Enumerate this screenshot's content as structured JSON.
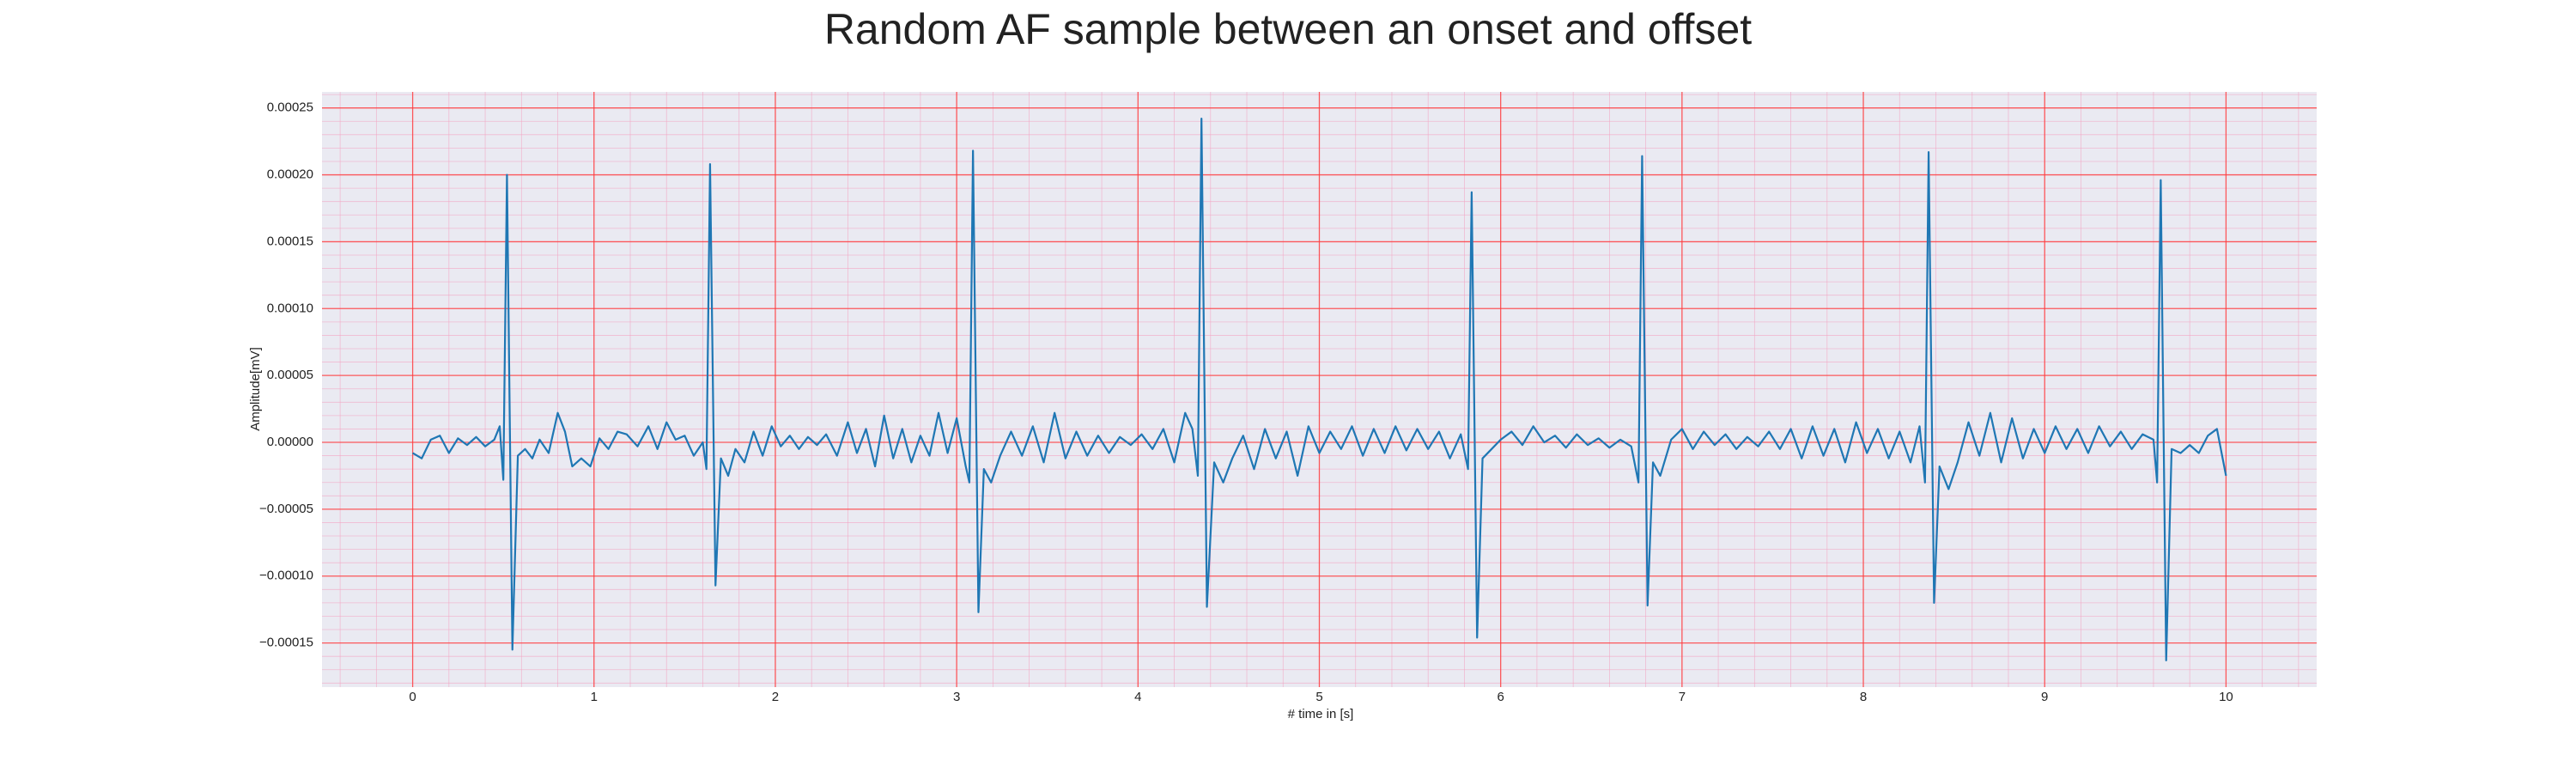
{
  "chart_data": {
    "type": "line",
    "title": "Random AF sample between an onset and offset",
    "x_label": "# time in [s]",
    "y_label": "Amplitude[mV]",
    "color": "#1f77b4",
    "grid": true,
    "minor_grid": true,
    "xlim": [
      -0.5,
      10.5
    ],
    "xticks": [
      0,
      1,
      2,
      3,
      4,
      5,
      6,
      7,
      8,
      9,
      10
    ],
    "ylim": [
      -0.000183,
      0.000262
    ],
    "yticks": [
      {
        "value": -0.00015,
        "label": "−0.00015"
      },
      {
        "value": -0.0001,
        "label": "−0.00010"
      },
      {
        "value": -5e-05,
        "label": "−0.00005"
      },
      {
        "value": 0,
        "label": "0.00000"
      },
      {
        "value": 5e-05,
        "label": "0.00005"
      },
      {
        "value": 0.0001,
        "label": "0.00010"
      },
      {
        "value": 0.00015,
        "label": "0.00015"
      },
      {
        "value": 0.0002,
        "label": "0.00020"
      },
      {
        "value": 0.00025,
        "label": "0.00025"
      }
    ],
    "x": [
      0.0,
      0.05,
      0.1,
      0.15,
      0.2,
      0.25,
      0.3,
      0.35,
      0.4,
      0.45,
      0.48,
      0.5,
      0.52,
      0.55,
      0.58,
      0.62,
      0.66,
      0.7,
      0.75,
      0.8,
      0.84,
      0.88,
      0.93,
      0.98,
      1.03,
      1.08,
      1.13,
      1.18,
      1.24,
      1.3,
      1.35,
      1.4,
      1.45,
      1.5,
      1.55,
      1.6,
      1.62,
      1.64,
      1.67,
      1.7,
      1.74,
      1.78,
      1.83,
      1.88,
      1.93,
      1.98,
      2.03,
      2.08,
      2.13,
      2.18,
      2.23,
      2.28,
      2.34,
      2.4,
      2.45,
      2.5,
      2.55,
      2.6,
      2.65,
      2.7,
      2.75,
      2.8,
      2.85,
      2.9,
      2.95,
      3.0,
      3.05,
      3.07,
      3.09,
      3.12,
      3.15,
      3.19,
      3.24,
      3.3,
      3.36,
      3.42,
      3.48,
      3.54,
      3.6,
      3.66,
      3.72,
      3.78,
      3.84,
      3.9,
      3.96,
      4.02,
      4.08,
      4.14,
      4.2,
      4.26,
      4.3,
      4.33,
      4.35,
      4.38,
      4.42,
      4.47,
      4.52,
      4.58,
      4.64,
      4.7,
      4.76,
      4.82,
      4.88,
      4.94,
      5.0,
      5.06,
      5.12,
      5.18,
      5.24,
      5.3,
      5.36,
      5.42,
      5.48,
      5.54,
      5.6,
      5.66,
      5.72,
      5.78,
      5.82,
      5.84,
      5.87,
      5.9,
      5.95,
      6.0,
      6.06,
      6.12,
      6.18,
      6.24,
      6.3,
      6.36,
      6.42,
      6.48,
      6.54,
      6.6,
      6.66,
      6.72,
      6.76,
      6.78,
      6.81,
      6.84,
      6.88,
      6.94,
      7.0,
      7.06,
      7.12,
      7.18,
      7.24,
      7.3,
      7.36,
      7.42,
      7.48,
      7.54,
      7.6,
      7.66,
      7.72,
      7.78,
      7.84,
      7.9,
      7.96,
      8.02,
      8.08,
      8.14,
      8.2,
      8.26,
      8.31,
      8.34,
      8.36,
      8.39,
      8.42,
      8.47,
      8.52,
      8.58,
      8.64,
      8.7,
      8.76,
      8.82,
      8.88,
      8.94,
      9.0,
      9.06,
      9.12,
      9.18,
      9.24,
      9.3,
      9.36,
      9.42,
      9.48,
      9.54,
      9.6,
      9.62,
      9.64,
      9.67,
      9.7,
      9.75,
      9.8,
      9.85,
      9.9,
      9.95,
      10.0
    ],
    "values": [
      -8e-06,
      -1.2e-05,
      2e-06,
      5e-06,
      -8e-06,
      3e-06,
      -2e-06,
      4e-06,
      -3e-06,
      2e-06,
      1.2e-05,
      -2.8e-05,
      0.0002,
      -0.000155,
      -1e-05,
      -5e-06,
      -1.2e-05,
      2e-06,
      -8e-06,
      2.2e-05,
      8e-06,
      -1.8e-05,
      -1.2e-05,
      -1.8e-05,
      3e-06,
      -5e-06,
      8e-06,
      6e-06,
      -3e-06,
      1.2e-05,
      -5e-06,
      1.5e-05,
      2e-06,
      5e-06,
      -1e-05,
      0,
      -2e-05,
      0.000208,
      -0.000107,
      -1.2e-05,
      -2.5e-05,
      -5e-06,
      -1.5e-05,
      8e-06,
      -1e-05,
      1.2e-05,
      -3e-06,
      5e-06,
      -5e-06,
      4e-06,
      -2e-06,
      6e-06,
      -1e-05,
      1.5e-05,
      -8e-06,
      1e-05,
      -1.8e-05,
      2e-05,
      -1.2e-05,
      1e-05,
      -1.5e-05,
      5e-06,
      -1e-05,
      2.2e-05,
      -8e-06,
      1.8e-05,
      -1.8e-05,
      -3e-05,
      0.000218,
      -0.000127,
      -2e-05,
      -3e-05,
      -1e-05,
      8e-06,
      -1e-05,
      1.2e-05,
      -1.5e-05,
      2.2e-05,
      -1.2e-05,
      8e-06,
      -1e-05,
      5e-06,
      -8e-06,
      4e-06,
      -2e-06,
      6e-06,
      -5e-06,
      1e-05,
      -1.5e-05,
      2.2e-05,
      1e-05,
      -2.5e-05,
      0.000242,
      -0.000123,
      -1.5e-05,
      -3e-05,
      -1.2e-05,
      5e-06,
      -2e-05,
      1e-05,
      -1.2e-05,
      8e-06,
      -2.5e-05,
      1.2e-05,
      -8e-06,
      8e-06,
      -5e-06,
      1.2e-05,
      -1e-05,
      1e-05,
      -8e-06,
      1.2e-05,
      -6e-06,
      1e-05,
      -5e-06,
      8e-06,
      -1.2e-05,
      6e-06,
      -2e-05,
      0.000187,
      -0.000146,
      -1.2e-05,
      -5e-06,
      2e-06,
      8e-06,
      -2e-06,
      1.2e-05,
      0,
      5e-06,
      -4e-06,
      6e-06,
      -2e-06,
      3e-06,
      -4e-06,
      2e-06,
      -3e-06,
      -3e-05,
      0.000214,
      -0.000122,
      -1.5e-05,
      -2.5e-05,
      2e-06,
      1e-05,
      -5e-06,
      8e-06,
      -2e-06,
      6e-06,
      -5e-06,
      4e-06,
      -3e-06,
      8e-06,
      -5e-06,
      1e-05,
      -1.2e-05,
      1.2e-05,
      -1e-05,
      1e-05,
      -1.5e-05,
      1.5e-05,
      -8e-06,
      1e-05,
      -1.2e-05,
      8e-06,
      -1.5e-05,
      1.2e-05,
      -3e-05,
      0.000217,
      -0.00012,
      -1.8e-05,
      -3.5e-05,
      -1.5e-05,
      1.5e-05,
      -1e-05,
      2.2e-05,
      -1.5e-05,
      1.8e-05,
      -1.2e-05,
      1e-05,
      -8e-06,
      1.2e-05,
      -5e-06,
      1e-05,
      -8e-06,
      1.2e-05,
      -3e-06,
      8e-06,
      -5e-06,
      6e-06,
      2e-06,
      -3e-05,
      0.000196,
      -0.000163,
      -5e-06,
      -8e-06,
      -2e-06,
      -8e-06,
      5e-06,
      1e-05,
      -2.5e-05
    ]
  }
}
